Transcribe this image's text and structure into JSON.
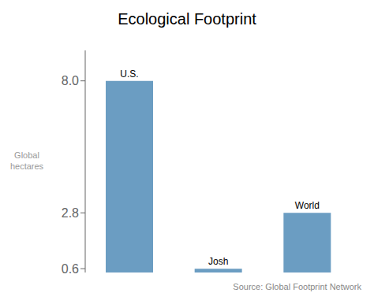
{
  "chart_data": {
    "type": "bar",
    "title": "Ecological Footprint",
    "categories": [
      "U.S.",
      "Josh",
      "World"
    ],
    "values": [
      8.0,
      0.6,
      2.8
    ],
    "color": "#6b9dc2",
    "ylabel": "Global\nhectares",
    "ylim": [
      0.45,
      9.2
    ],
    "yticks": [
      0.6,
      2.8,
      {
        "value": 8.0,
        "label": "8.0"
      }
    ],
    "grid": false,
    "tick_labels": "y",
    "annotations": [
      "Source: Global Footprint Network"
    ]
  }
}
